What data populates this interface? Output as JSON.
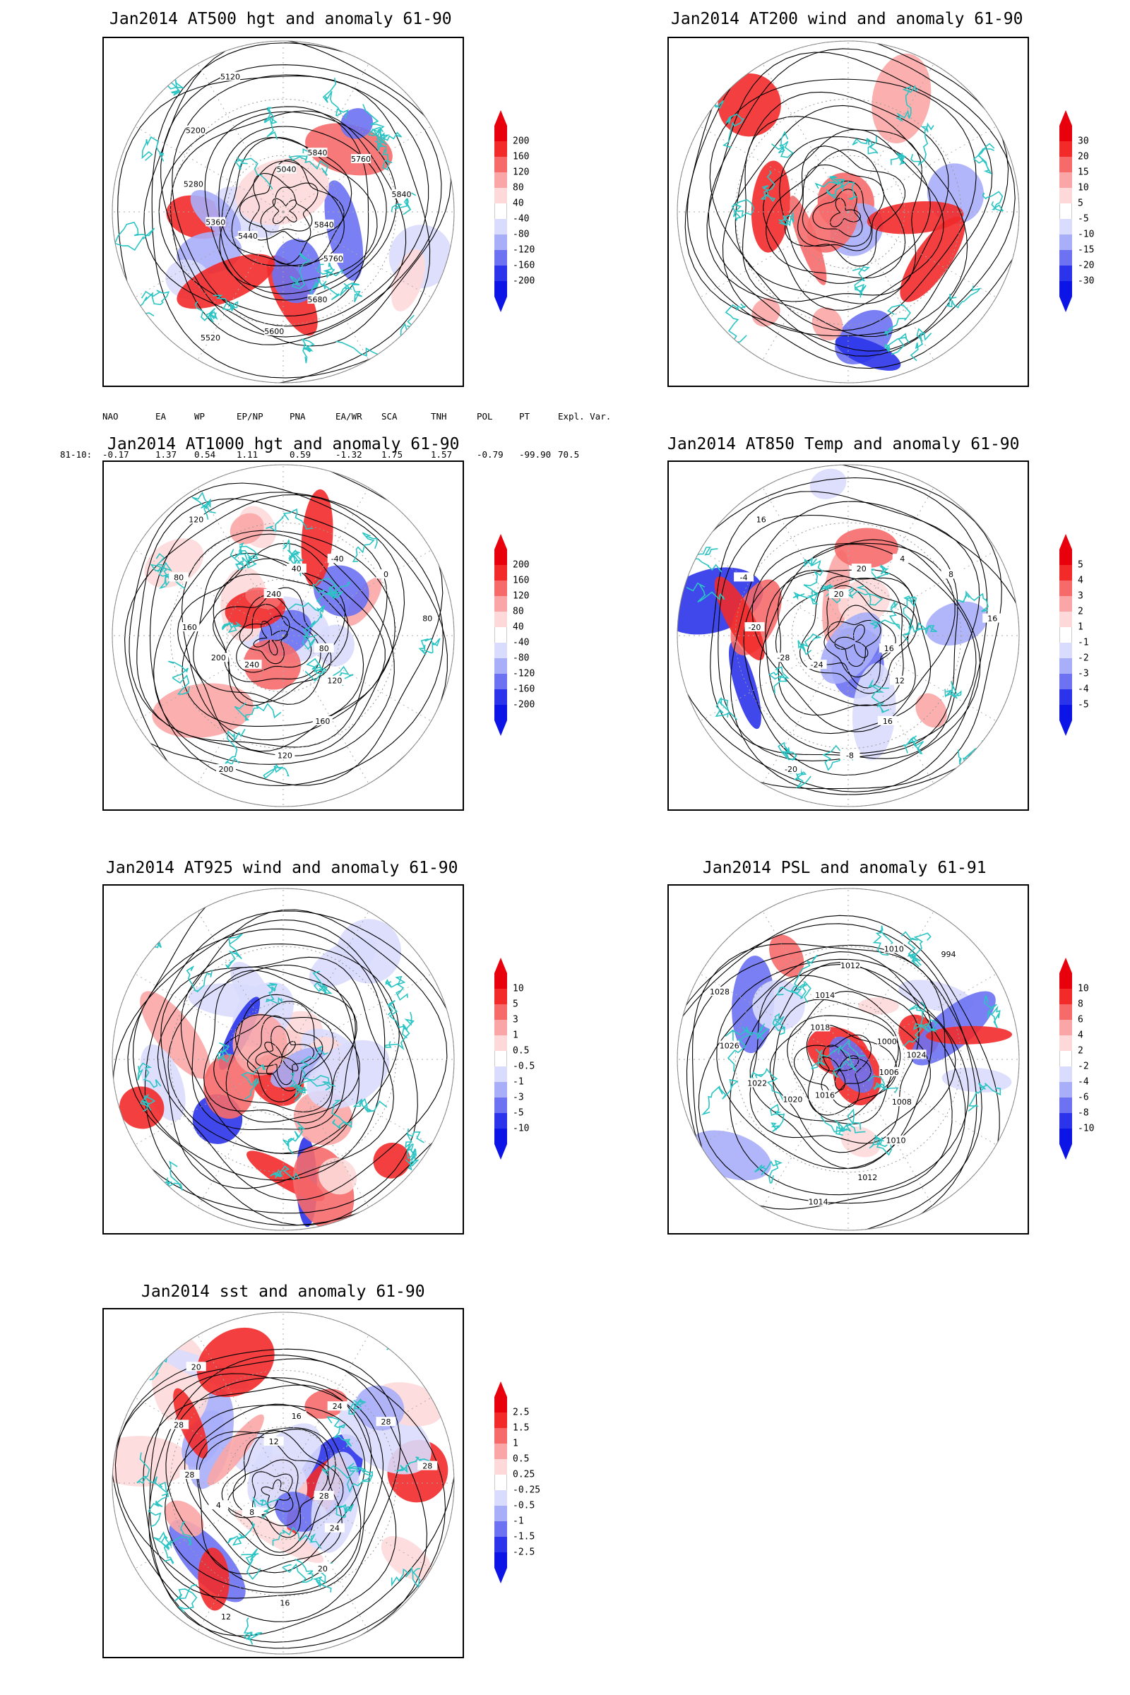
{
  "panels": [
    {
      "id": "at500",
      "title": "Jan2014 AT500 hgt and anomaly 61-90",
      "colorbar": [
        "200",
        "160",
        "120",
        "80",
        "40",
        "-40",
        "-80",
        "-120",
        "-160",
        "-200"
      ],
      "contour_labels": [
        "5840",
        "5760",
        "5680",
        "5600",
        "5520",
        "5440",
        "5360",
        "5280",
        "5200",
        "5120",
        "5040",
        "5840",
        "5760",
        "5840"
      ]
    },
    {
      "id": "at200",
      "title": "Jan2014 AT200 wind and anomaly 61-90",
      "colorbar": [
        "30",
        "20",
        "15",
        "10",
        "5",
        "-5",
        "-10",
        "-15",
        "-20",
        "-30"
      ],
      "contour_labels": []
    },
    {
      "id": "at1000",
      "title": "Jan2014 AT1000 hgt and anomaly 61-90",
      "colorbar": [
        "200",
        "160",
        "120",
        "80",
        "40",
        "-40",
        "-80",
        "-120",
        "-160",
        "-200"
      ],
      "contour_labels": [
        "80",
        "120",
        "160",
        "120",
        "200",
        "240",
        "200",
        "160",
        "80",
        "120",
        "240",
        "40",
        "-40",
        "0",
        "80"
      ]
    },
    {
      "id": "at850",
      "title": "Jan2014 AT850 Temp and anomaly 61-90",
      "colorbar": [
        "5",
        "4",
        "3",
        "2",
        "1",
        "-1",
        "-2",
        "-3",
        "-4",
        "-5"
      ],
      "contour_labels": [
        "16",
        "12",
        "16",
        "-8",
        "-20",
        "-24",
        "-28",
        "-20",
        "-4",
        "16",
        "20",
        "20",
        "4",
        "8",
        "16"
      ]
    },
    {
      "id": "at925",
      "title": "Jan2014 AT925 wind and anomaly 61-90",
      "colorbar": [
        "10",
        "5",
        "3",
        "1",
        "0.5",
        "-0.5",
        "-1",
        "-3",
        "-5",
        "-10"
      ],
      "contour_labels": []
    },
    {
      "id": "psl",
      "title": "Jan2014 PSL and anomaly 61-91",
      "colorbar": [
        "10",
        "8",
        "6",
        "4",
        "2",
        "-2",
        "-4",
        "-6",
        "-8",
        "-10"
      ],
      "contour_labels": [
        "1006",
        "1008",
        "1010",
        "1012",
        "1014",
        "1016",
        "1020",
        "1022",
        "1026",
        "1028",
        "1018",
        "1014",
        "1012",
        "1010",
        "994",
        "1000",
        "1024"
      ]
    },
    {
      "id": "sst",
      "title": "Jan2014 sst and anomaly 61-90",
      "colorbar": [
        "2.5",
        "1.5",
        "1",
        "0.5",
        "0.25",
        "-0.25",
        "-0.5",
        "-1",
        "-1.5",
        "-2.5"
      ],
      "contour_labels": [
        "28",
        "24",
        "20",
        "16",
        "12",
        "8",
        "4",
        "28",
        "28",
        "20",
        "12",
        "16",
        "24",
        "28",
        "28"
      ]
    }
  ],
  "indices": {
    "header": [
      "NAO",
      "EA",
      "WP",
      "EP/NP",
      "PNA",
      "EA/WR",
      "SCA",
      "TNH",
      "POL",
      "PT",
      "Expl. Var."
    ],
    "row_label": "81-10:",
    "values": [
      "-0.17",
      "1.37",
      "0.54",
      "1.11",
      "0.59",
      "-1.32",
      "1.75",
      "1.57",
      "-0.79",
      "-99.90",
      "70.5"
    ]
  },
  "colors": {
    "frame": "#000000",
    "coastline": "#2bc4c4",
    "contour": "#000000",
    "colorbar_fill": [
      "#e8000c",
      "#f22a2a",
      "#f66a6a",
      "#fba6a6",
      "#fdd9d9",
      "#ffffff",
      "#d9dcfd",
      "#a9aef9",
      "#6c72f2",
      "#2b34ea",
      "#0c14e6"
    ]
  }
}
